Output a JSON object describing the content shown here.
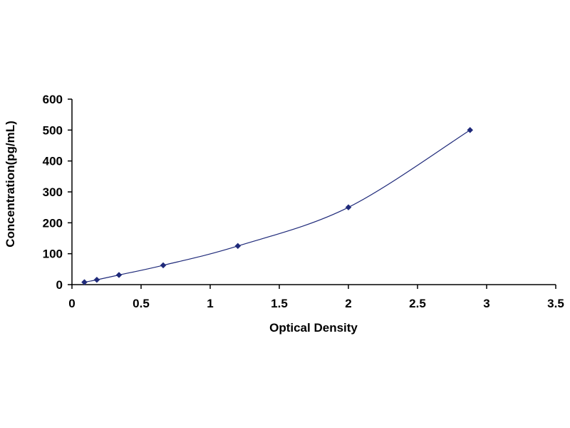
{
  "chart_data": {
    "type": "scatter",
    "title": "",
    "xlabel": "Optical Density",
    "ylabel": "Concentration(pg/mL)",
    "xlim": [
      0,
      3.5
    ],
    "ylim": [
      0,
      600
    ],
    "x_ticks": [
      0,
      0.5,
      1,
      1.5,
      2,
      2.5,
      3,
      3.5
    ],
    "x_tick_labels": [
      "0",
      "0.5",
      "1",
      "1.5",
      "2",
      "2.5",
      "3",
      "3.5"
    ],
    "y_ticks": [
      0,
      100,
      200,
      300,
      400,
      500,
      600
    ],
    "y_tick_labels": [
      "0",
      "100",
      "200",
      "300",
      "400",
      "500",
      "600"
    ],
    "grid": false,
    "legend": "none",
    "series": [
      {
        "x": [
          0.09,
          0.18,
          0.34,
          0.66,
          1.2,
          2.0,
          2.88
        ],
        "y": [
          7.8,
          15.6,
          31.2,
          62.5,
          125,
          250,
          500
        ],
        "marker": "diamond",
        "trendline": "smooth curve",
        "color": "#1f2a7a"
      }
    ]
  }
}
